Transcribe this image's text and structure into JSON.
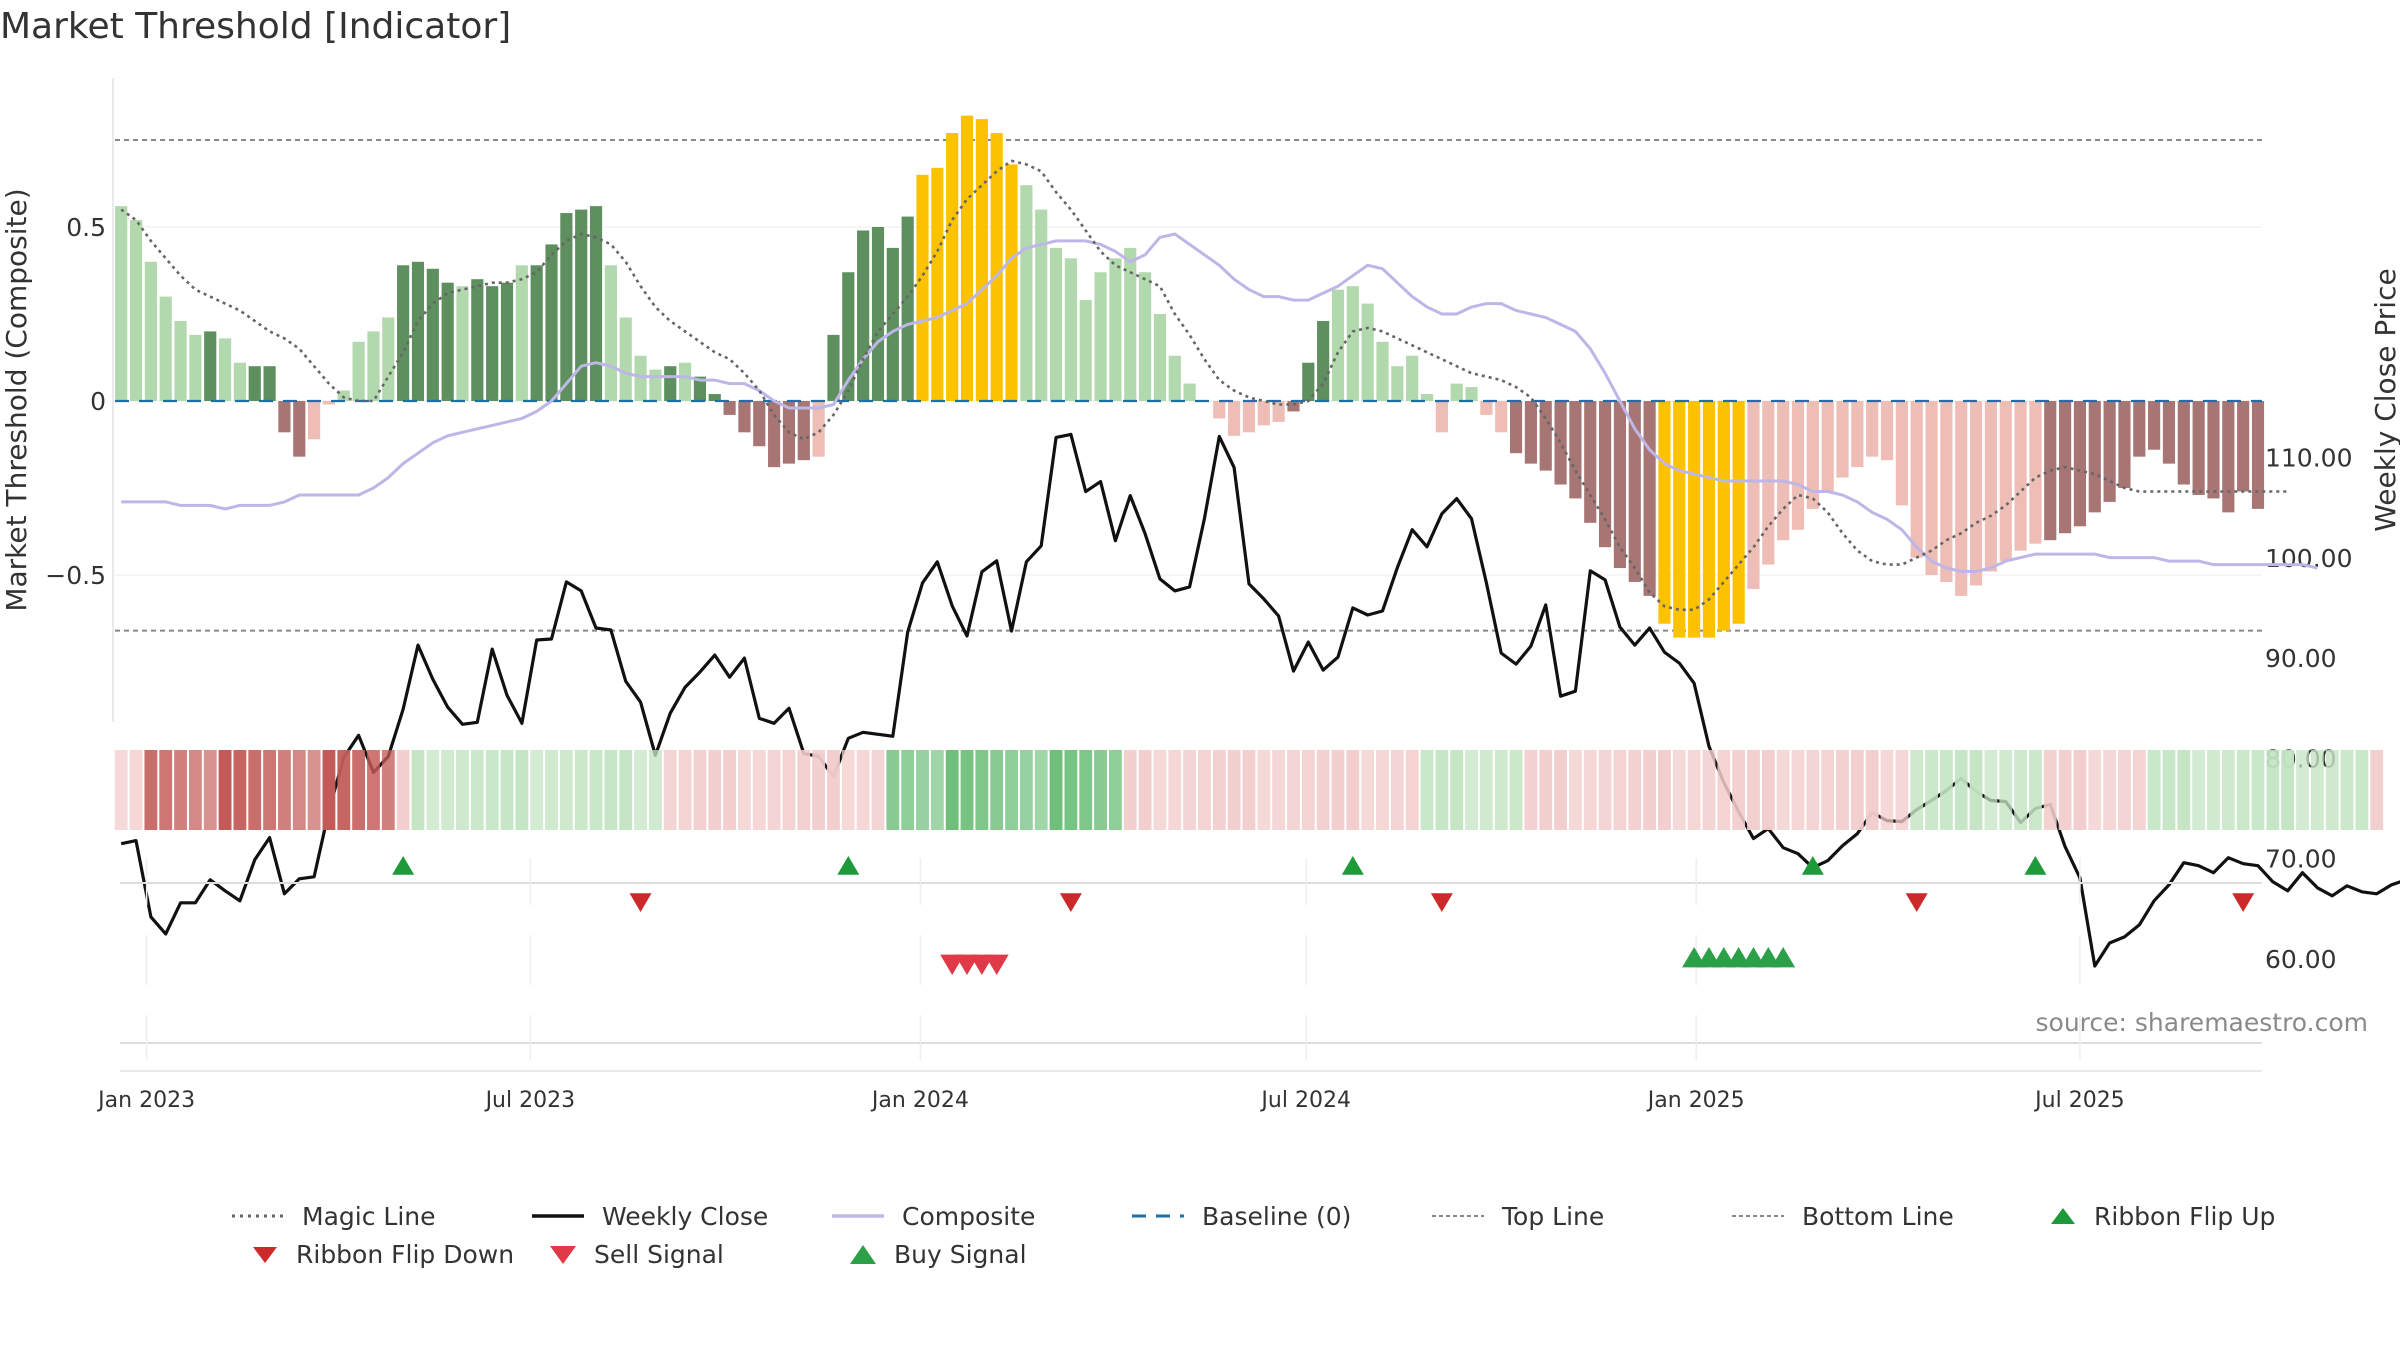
{
  "title": "Market Threshold [Indicator]",
  "source": "source: sharemaestro.com",
  "colors": {
    "magic": "#666666",
    "close": "#111111",
    "composite": "#bdb6e6",
    "baseline": "#1f6fa8",
    "threshold": "#888888",
    "buy": "#2ca048",
    "sell": "#e03a48",
    "flip_up": "#1f9a3a",
    "flip_down": "#cc2a2a",
    "bar_pos_strong": "#5e8f5e",
    "bar_pos_weak": "#b2d9ad",
    "bar_neg_strong": "#a87575",
    "bar_neg_weak": "#edbdb6",
    "bar_extreme": "#fcc200",
    "ribbon_green_strong": "#6fbf7b",
    "ribbon_green_weak": "#c3e4c3",
    "ribbon_red_strong": "#c25b57",
    "ribbon_red_weak": "#f2cccc"
  },
  "chart_data": {
    "type": "bar",
    "x_axis": {
      "tick_labels": [
        "Jan 2023",
        "Jul 2023",
        "Jan 2024",
        "Jul 2024",
        "Jan 2025",
        "Jul 2025"
      ]
    },
    "y_left": {
      "label": "Market Threshold (Composite)",
      "ticks": [
        "0.5",
        "0",
        "−0.5"
      ],
      "tick_values": [
        0.5,
        0,
        -0.5
      ],
      "range": [
        -0.92,
        0.92
      ]
    },
    "y_right": {
      "label": "Weekly Close Price",
      "ticks": [
        "110.00",
        "100.00",
        "90.00",
        "80.00",
        "70.00",
        "60.00"
      ],
      "tick_values": [
        110,
        100,
        90,
        80,
        70,
        60
      ],
      "range": [
        54,
        116
      ]
    },
    "top_line": 0.75,
    "bottom_line": -0.66,
    "baseline": 0,
    "start_date": "2022-12-20",
    "week_step": 1,
    "composite_bars": [
      0.56,
      0.52,
      0.4,
      0.3,
      0.23,
      0.19,
      0.2,
      0.18,
      0.11,
      0.1,
      0.1,
      -0.09,
      -0.16,
      -0.11,
      -0.01,
      0.03,
      0.17,
      0.2,
      0.24,
      0.39,
      0.4,
      0.38,
      0.34,
      0.33,
      0.35,
      0.33,
      0.34,
      0.39,
      0.39,
      0.45,
      0.54,
      0.55,
      0.56,
      0.39,
      0.24,
      0.13,
      0.09,
      0.1,
      0.11,
      0.07,
      0.02,
      -0.04,
      -0.09,
      -0.13,
      -0.19,
      -0.18,
      -0.17,
      -0.16,
      0.19,
      0.37,
      0.49,
      0.5,
      0.44,
      0.53,
      0.65,
      0.67,
      0.77,
      0.82,
      0.81,
      0.77,
      0.68,
      0.62,
      0.55,
      0.44,
      0.41,
      0.29,
      0.37,
      0.41,
      0.44,
      0.37,
      0.25,
      0.13,
      0.05,
      0.0,
      -0.05,
      -0.1,
      -0.09,
      -0.07,
      -0.06,
      -0.03,
      0.11,
      0.23,
      0.32,
      0.33,
      0.28,
      0.17,
      0.1,
      0.13,
      0.02,
      -0.09,
      0.05,
      0.04,
      -0.04,
      -0.09,
      -0.15,
      -0.18,
      -0.2,
      -0.24,
      -0.28,
      -0.35,
      -0.42,
      -0.48,
      -0.52,
      -0.56,
      -0.64,
      -0.68,
      -0.68,
      -0.68,
      -0.66,
      -0.64,
      -0.54,
      -0.47,
      -0.4,
      -0.37,
      -0.31,
      -0.26,
      -0.22,
      -0.19,
      -0.16,
      -0.17,
      -0.3,
      -0.45,
      -0.5,
      -0.52,
      -0.56,
      -0.53,
      -0.49,
      -0.46,
      -0.43,
      -0.41,
      -0.4,
      -0.38,
      -0.36,
      -0.32,
      -0.29,
      -0.25,
      -0.16,
      -0.14,
      -0.18,
      -0.24,
      -0.27,
      -0.28,
      -0.32,
      -0.26,
      -0.31
    ],
    "bar_classes": "wwwwwwswwsssswwwwwwsssswssswssssswwwwswsssssssswssssssssssswwwwwwwwwwwwwwwwwwwwssswwwwwwwwwwwwsssssssssssswswwwwwwwwwwwwwwwwwwwwwwsssssssssssssssssssssss",
    "weekly_close": [
      71.5,
      71.8,
      64.2,
      62.5,
      65.6,
      65.6,
      67.9,
      66.8,
      65.8,
      69.9,
      72.1,
      66.5,
      68.0,
      68.2,
      74.8,
      80.1,
      82.3,
      78.6,
      80.2,
      84.9,
      91.3,
      87.9,
      85.1,
      83.4,
      83.6,
      90.9,
      86.3,
      83.5,
      91.8,
      91.9,
      97.6,
      96.7,
      93.0,
      92.8,
      87.7,
      85.6,
      80.3,
      84.5,
      87.1,
      88.6,
      90.3,
      88.1,
      90.0,
      84.0,
      83.5,
      85.0,
      80.5,
      80.2,
      78.2,
      82.0,
      82.6,
      82.4,
      82.2,
      92.6,
      97.5,
      99.6,
      95.2,
      92.2,
      98.6,
      99.7,
      92.7,
      99.6,
      101.2,
      112.0,
      112.3,
      106.6,
      107.6,
      101.7,
      106.2,
      102.4,
      97.9,
      96.7,
      97.1,
      103.9,
      112.1,
      109.0,
      97.4,
      95.9,
      94.2,
      88.7,
      91.6,
      88.8,
      90.1,
      95.0,
      94.3,
      94.7,
      99.0,
      102.8,
      101.1,
      104.4,
      105.9,
      103.9,
      97.5,
      90.5,
      89.4,
      91.2,
      95.3,
      86.2,
      86.7,
      98.7,
      97.8,
      93.1,
      91.3,
      93.0,
      90.6,
      89.5,
      87.5,
      81.2,
      77.6,
      74.7,
      72.0,
      73.0,
      71.1,
      70.5,
      69.1,
      69.8,
      71.3,
      72.5,
      74.6,
      73.8,
      73.7,
      74.9,
      75.8,
      76.8,
      78.0,
      76.7,
      75.8,
      75.7,
      73.6,
      75.0,
      75.4,
      71.2,
      68.1,
      59.3,
      61.6,
      62.2,
      63.4,
      65.8,
      67.4,
      69.6,
      69.3,
      68.6,
      70.1,
      69.5,
      69.3,
      67.7,
      66.8,
      68.6,
      67.1,
      66.3,
      67.3,
      66.7,
      66.5,
      67.4,
      67.9,
      68.0,
      67.2,
      67.0,
      66.9,
      69.0,
      65.6,
      68.8,
      65.6
    ],
    "composite_line": [
      -0.29,
      -0.29,
      -0.29,
      -0.29,
      -0.3,
      -0.3,
      -0.3,
      -0.31,
      -0.3,
      -0.3,
      -0.3,
      -0.29,
      -0.27,
      -0.27,
      -0.27,
      -0.27,
      -0.27,
      -0.25,
      -0.22,
      -0.18,
      -0.15,
      -0.12,
      -0.1,
      -0.09,
      -0.08,
      -0.07,
      -0.06,
      -0.05,
      -0.03,
      0.0,
      0.05,
      0.1,
      0.11,
      0.1,
      0.08,
      0.07,
      0.07,
      0.07,
      0.07,
      0.06,
      0.06,
      0.05,
      0.05,
      0.03,
      0.0,
      -0.02,
      -0.02,
      -0.02,
      -0.01,
      0.06,
      0.12,
      0.17,
      0.2,
      0.22,
      0.23,
      0.24,
      0.26,
      0.28,
      0.32,
      0.36,
      0.41,
      0.44,
      0.45,
      0.46,
      0.46,
      0.46,
      0.45,
      0.43,
      0.4,
      0.42,
      0.47,
      0.48,
      0.45,
      0.42,
      0.39,
      0.35,
      0.32,
      0.3,
      0.3,
      0.29,
      0.29,
      0.31,
      0.33,
      0.36,
      0.39,
      0.38,
      0.34,
      0.3,
      0.27,
      0.25,
      0.25,
      0.27,
      0.28,
      0.28,
      0.26,
      0.25,
      0.24,
      0.22,
      0.2,
      0.15,
      0.08,
      0.0,
      -0.08,
      -0.14,
      -0.18,
      -0.2,
      -0.21,
      -0.22,
      -0.23,
      -0.23,
      -0.23,
      -0.23,
      -0.23,
      -0.24,
      -0.26,
      -0.26,
      -0.27,
      -0.29,
      -0.32,
      -0.34,
      -0.37,
      -0.42,
      -0.46,
      -0.48,
      -0.49,
      -0.49,
      -0.48,
      -0.46,
      -0.45,
      -0.44,
      -0.44,
      -0.44,
      -0.44,
      -0.44,
      -0.45,
      -0.45,
      -0.45,
      -0.45,
      -0.46,
      -0.46,
      -0.46,
      -0.47,
      -0.47,
      -0.47,
      -0.47,
      -0.47,
      -0.47,
      -0.47,
      -0.48
    ],
    "magic_line": [
      0.55,
      0.52,
      0.46,
      0.41,
      0.36,
      0.32,
      0.3,
      0.28,
      0.26,
      0.23,
      0.2,
      0.18,
      0.15,
      0.1,
      0.05,
      0.01,
      0.0,
      0.0,
      0.07,
      0.14,
      0.23,
      0.28,
      0.31,
      0.32,
      0.33,
      0.34,
      0.34,
      0.35,
      0.37,
      0.42,
      0.46,
      0.48,
      0.47,
      0.45,
      0.4,
      0.33,
      0.27,
      0.23,
      0.2,
      0.17,
      0.14,
      0.12,
      0.08,
      0.03,
      -0.04,
      -0.09,
      -0.11,
      -0.09,
      -0.04,
      0.03,
      0.12,
      0.2,
      0.25,
      0.3,
      0.36,
      0.43,
      0.52,
      0.58,
      0.62,
      0.66,
      0.69,
      0.68,
      0.66,
      0.6,
      0.55,
      0.49,
      0.43,
      0.39,
      0.37,
      0.35,
      0.33,
      0.25,
      0.19,
      0.12,
      0.06,
      0.03,
      0.01,
      0.0,
      -0.01,
      -0.01,
      0.0,
      0.05,
      0.14,
      0.2,
      0.21,
      0.2,
      0.18,
      0.16,
      0.14,
      0.12,
      0.1,
      0.08,
      0.07,
      0.06,
      0.04,
      0.01,
      -0.05,
      -0.12,
      -0.2,
      -0.27,
      -0.34,
      -0.42,
      -0.48,
      -0.55,
      -0.59,
      -0.6,
      -0.6,
      -0.57,
      -0.52,
      -0.47,
      -0.42,
      -0.36,
      -0.31,
      -0.27,
      -0.28,
      -0.32,
      -0.38,
      -0.43,
      -0.46,
      -0.47,
      -0.47,
      -0.45,
      -0.43,
      -0.4,
      -0.38,
      -0.35,
      -0.33,
      -0.3,
      -0.26,
      -0.22,
      -0.2,
      -0.19,
      -0.2,
      -0.21,
      -0.23,
      -0.25,
      -0.26,
      -0.26,
      -0.26,
      -0.26,
      -0.26,
      -0.26,
      -0.26,
      -0.26,
      -0.26,
      -0.26,
      -0.26
    ],
    "ribbon": "rrRRRRRRRRRRRRRRRRRrgggggggggggggggggrrrrrrrrrrrrrrrGGGGGGGGGGGGGGGGrrrrrrrrrrrrrrrrrrrrgggggggrrrrrrrrrrrrrrrrrrrrrrrrrrgggggggggrrrrrrrgggggggggggggggr",
    "ribbon_flip_up_weeks": [
      19,
      49,
      83,
      114,
      129
    ],
    "ribbon_flip_down_weeks": [
      35,
      64,
      89,
      121,
      143
    ],
    "sell_signal_weeks": [
      56,
      57,
      58,
      59
    ],
    "buy_signal_weeks": [
      106,
      107,
      108,
      109,
      110,
      111,
      112
    ],
    "legend": [
      "Magic Line",
      "Weekly Close",
      "Composite",
      "Baseline (0)",
      "Top Line",
      "Bottom Line",
      "Ribbon Flip Up",
      "Ribbon Flip Down",
      "Sell Signal",
      "Buy Signal"
    ]
  }
}
